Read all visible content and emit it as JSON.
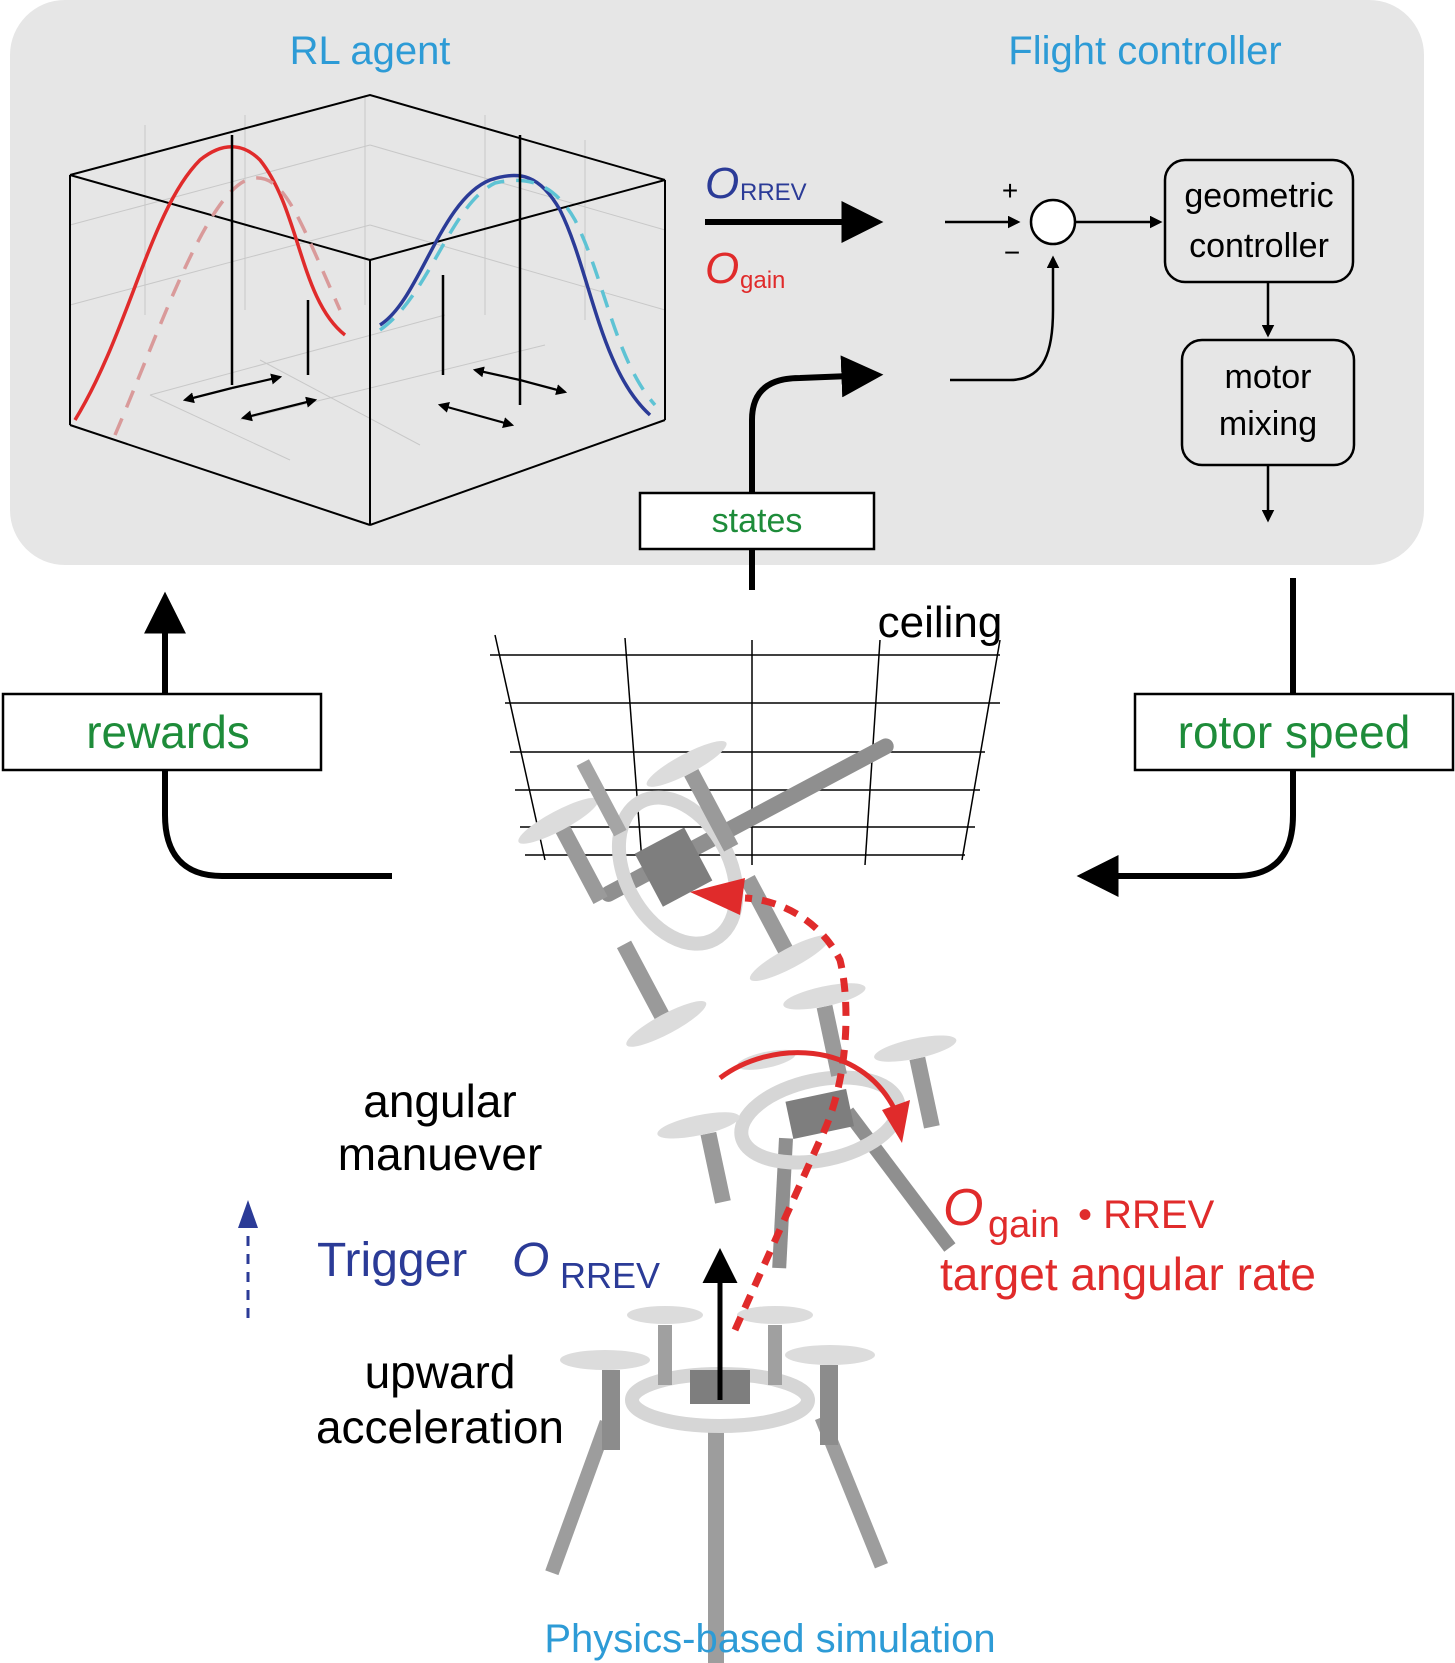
{
  "labels": {
    "rl_agent": "RL agent",
    "flight_controller": "Flight controller",
    "o_rrev_symbol": "O",
    "o_rrev_sub": "RREV",
    "o_gain_symbol": "O",
    "o_gain_sub": "gain",
    "plus": "+",
    "minus": "−",
    "geometric_controller_line1": "geometric",
    "geometric_controller_line2": "controller",
    "motor_mixing_line1": "motor",
    "motor_mixing_line2": "mixing",
    "states": "states",
    "rewards": "rewards",
    "rotor_speed": "rotor speed",
    "ceiling": "ceiling",
    "angular_maneuver_line1": "angular",
    "angular_maneuver_line2": "manuever",
    "trigger": "Trigger",
    "trigger_o": "O",
    "trigger_sub": "RREV",
    "target_o": "O",
    "target_sub": "gain",
    "target_rrev": "• RREV",
    "target_rate": "target angular rate",
    "upward_line1": "upward",
    "upward_line2": "acceleration",
    "physics_sim": "Physics-based simulation"
  },
  "colors": {
    "panel_bg": "#e6e6e6",
    "title_blue": "#2d9bd6",
    "label_green": "#1e8c3a",
    "rrev_blue": "#2b3b97",
    "gain_red": "#e02b2b",
    "faded_red": "#d99a9a",
    "cyan_dash": "#5ec3d4",
    "drone_gray": "#9a9a9a"
  },
  "icons": {
    "summing_junction": "summing-junction-circle",
    "drone": "quadrotor-drone-icon"
  }
}
